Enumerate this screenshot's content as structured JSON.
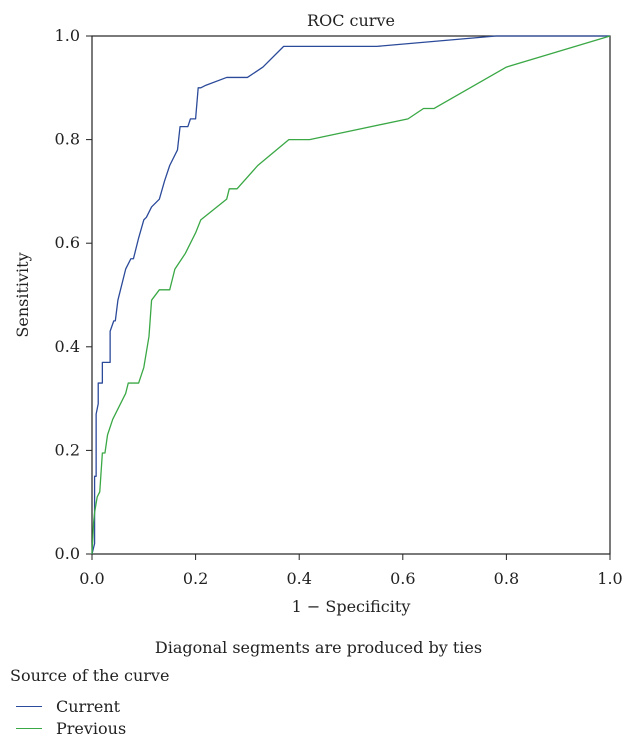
{
  "chart_data": {
    "type": "line",
    "title": "ROC curve",
    "xlabel": "1 − Specificity",
    "ylabel": "Sensitivity",
    "xlim": [
      0,
      1
    ],
    "ylim": [
      0,
      1
    ],
    "xticks": [
      "0.0",
      "0.2",
      "0.4",
      "0.6",
      "0.8",
      "1.0"
    ],
    "yticks": [
      "0.0",
      "0.2",
      "0.4",
      "0.6",
      "0.8",
      "1.0"
    ],
    "grid": false,
    "footnote": "Diagonal segments are produced by ties",
    "legend_title": "Source of the curve",
    "legend_position": "bottom-left",
    "series": [
      {
        "name": "Current",
        "color": "#2b4a9a",
        "x": [
          0.0,
          0.005,
          0.005,
          0.008,
          0.008,
          0.012,
          0.012,
          0.02,
          0.02,
          0.035,
          0.035,
          0.042,
          0.045,
          0.05,
          0.055,
          0.065,
          0.07,
          0.075,
          0.08,
          0.085,
          0.09,
          0.1,
          0.105,
          0.115,
          0.13,
          0.14,
          0.15,
          0.165,
          0.17,
          0.185,
          0.19,
          0.2,
          0.205,
          0.21,
          0.22,
          0.26,
          0.29,
          0.3,
          0.33,
          0.37,
          0.4,
          0.55,
          0.78,
          1.0
        ],
        "y": [
          0.0,
          0.02,
          0.15,
          0.15,
          0.27,
          0.29,
          0.33,
          0.33,
          0.37,
          0.37,
          0.43,
          0.45,
          0.45,
          0.49,
          0.51,
          0.55,
          0.56,
          0.57,
          0.57,
          0.59,
          0.61,
          0.645,
          0.65,
          0.67,
          0.685,
          0.72,
          0.75,
          0.78,
          0.825,
          0.825,
          0.84,
          0.84,
          0.9,
          0.9,
          0.905,
          0.92,
          0.92,
          0.92,
          0.94,
          0.98,
          0.98,
          0.98,
          1.0,
          1.0
        ]
      },
      {
        "name": "Previous",
        "color": "#3aa845",
        "x": [
          0.0,
          0.003,
          0.005,
          0.01,
          0.015,
          0.02,
          0.025,
          0.03,
          0.04,
          0.05,
          0.06,
          0.065,
          0.07,
          0.075,
          0.09,
          0.1,
          0.11,
          0.115,
          0.13,
          0.14,
          0.15,
          0.16,
          0.18,
          0.2,
          0.21,
          0.26,
          0.265,
          0.28,
          0.32,
          0.38,
          0.42,
          0.61,
          0.64,
          0.66,
          0.8,
          1.0
        ],
        "y": [
          0.0,
          0.06,
          0.08,
          0.11,
          0.12,
          0.195,
          0.195,
          0.23,
          0.26,
          0.28,
          0.3,
          0.31,
          0.33,
          0.33,
          0.33,
          0.36,
          0.42,
          0.49,
          0.51,
          0.51,
          0.51,
          0.55,
          0.58,
          0.62,
          0.645,
          0.685,
          0.705,
          0.705,
          0.75,
          0.8,
          0.8,
          0.84,
          0.86,
          0.86,
          0.94,
          1.0
        ]
      }
    ]
  }
}
